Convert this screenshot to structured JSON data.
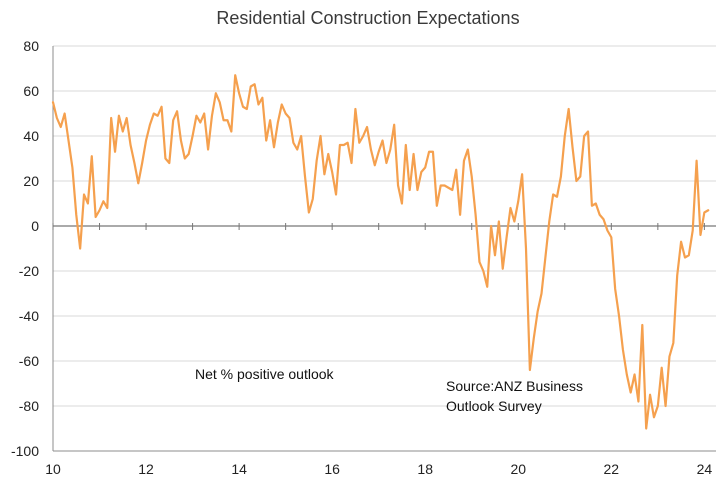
{
  "chart_data": {
    "type": "line",
    "title": "Residential Construction Expectations",
    "xlabel": "",
    "ylabel": "",
    "xlim": [
      10,
      24.25
    ],
    "ylim": [
      -100,
      80
    ],
    "x_ticks": [
      10,
      12,
      14,
      16,
      18,
      20,
      22,
      24
    ],
    "y_ticks": [
      80,
      60,
      40,
      20,
      0,
      -20,
      -40,
      -60,
      -80,
      -100
    ],
    "grid": "horizontal",
    "colors": {
      "line": "#f5a04e",
      "grid": "#d8d8d8",
      "axis": "#8c8c8c",
      "zero": "#777777"
    },
    "annotations": {
      "left": [
        "Net % positive outlook"
      ],
      "right": [
        "Source:ANZ Business",
        "Outlook Survey"
      ]
    },
    "series": [
      {
        "name": "Net % positive outlook",
        "start": 10.0,
        "step": 0.08333,
        "values": [
          55,
          48,
          44,
          50,
          38,
          26,
          5,
          -10,
          14,
          10,
          31,
          4,
          7,
          11,
          8,
          48,
          33,
          49,
          42,
          48,
          36,
          28,
          19,
          28,
          38,
          45,
          50,
          49,
          53,
          30,
          28,
          47,
          51,
          38,
          30,
          32,
          40,
          49,
          46,
          50,
          34,
          49,
          59,
          55,
          47,
          47,
          42,
          67,
          59,
          53,
          52,
          62,
          63,
          54,
          57,
          38,
          47,
          35,
          46,
          54,
          50,
          48,
          37,
          34,
          40,
          22,
          6,
          12,
          29,
          40,
          23,
          32,
          24,
          14,
          36,
          36,
          37,
          28,
          52,
          37,
          40,
          44,
          34,
          27,
          33,
          38,
          28,
          34,
          45,
          18,
          10,
          36,
          16,
          32,
          16,
          24,
          26,
          33,
          33,
          9,
          18,
          18,
          17,
          16,
          25,
          5,
          29,
          34,
          22,
          5,
          -16,
          -20,
          -27,
          0,
          -13,
          2,
          -19,
          -5,
          8,
          2,
          11,
          23,
          -10,
          -64,
          -50,
          -38,
          -30,
          -14,
          2,
          14,
          13,
          22,
          40,
          52,
          35,
          20,
          22,
          40,
          42,
          9,
          10,
          5,
          3,
          -2,
          -5,
          -28,
          -40,
          -55,
          -66,
          -74,
          -66,
          -78,
          -44,
          -90,
          -75,
          -85,
          -80,
          -63,
          -80,
          -58,
          -52,
          -22,
          -7,
          -14,
          -13,
          -2,
          29,
          -4,
          6,
          7
        ]
      }
    ]
  }
}
